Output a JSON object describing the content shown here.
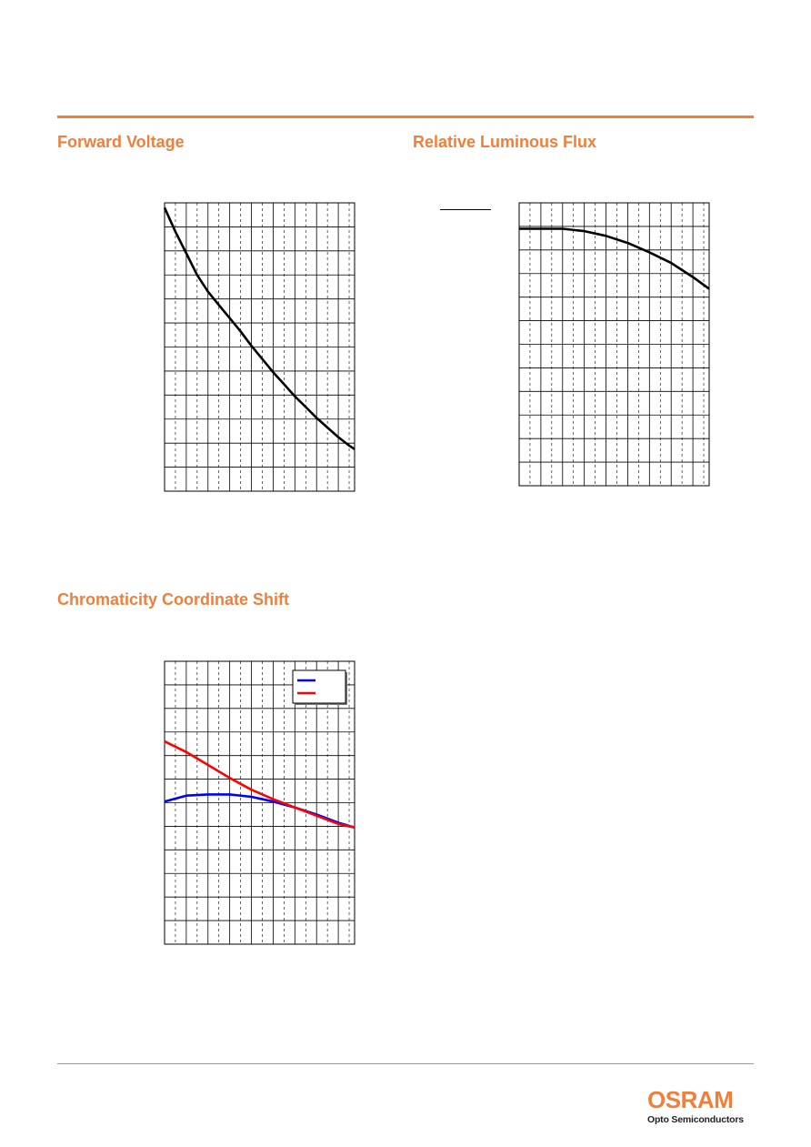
{
  "page": {
    "brand_color": "#f07f3c",
    "logo": {
      "wordmark": "OSRAM",
      "tagline": "Opto Semiconductors"
    }
  },
  "sections": {
    "forward_voltage": {
      "title": "Forward Voltage"
    },
    "relative_luminous_flux": {
      "title": "Relative Luminous Flux"
    },
    "chromaticity_shift": {
      "title": "Chromaticity Coordinate Shift"
    }
  },
  "chart_data": [
    {
      "id": "forward-voltage",
      "type": "line",
      "title": "Forward Voltage",
      "grid": true,
      "xlim": [
        0,
        17.5
      ],
      "ylim": [
        0,
        12
      ],
      "x_minor_dashed": true,
      "series": [
        {
          "color": "#000000",
          "x": [
            0,
            1,
            2,
            3,
            4,
            5,
            6,
            7,
            8,
            9,
            10,
            11,
            12,
            13,
            14,
            15,
            16,
            17,
            17.5
          ],
          "values": [
            11.8,
            10.8,
            9.9,
            9.0,
            8.3,
            7.75,
            7.2,
            6.65,
            6.05,
            5.5,
            4.95,
            4.45,
            3.95,
            3.5,
            3.05,
            2.65,
            2.25,
            1.9,
            1.75
          ]
        }
      ]
    },
    {
      "id": "relative-luminous-flux",
      "type": "line",
      "title": "Relative Luminous Flux",
      "grid": true,
      "xlim": [
        0,
        17.5
      ],
      "ylim": [
        0,
        12
      ],
      "x_minor_dashed": true,
      "series": [
        {
          "color": "#000000",
          "x": [
            0,
            2,
            4,
            6,
            8,
            10,
            12,
            14,
            16,
            17.5
          ],
          "values": [
            10.9,
            10.9,
            10.9,
            10.8,
            10.6,
            10.3,
            9.9,
            9.45,
            8.85,
            8.35
          ]
        }
      ]
    },
    {
      "id": "chromaticity-shift",
      "type": "line",
      "title": "Chromaticity Coordinate Shift",
      "grid": true,
      "xlim": [
        0,
        17.5
      ],
      "ylim": [
        0,
        12
      ],
      "x_minor_dashed": true,
      "legend": "top-right",
      "series": [
        {
          "color": "#0000ff",
          "x": [
            0,
            2,
            4,
            6,
            8,
            10,
            12,
            14,
            16,
            17.5
          ],
          "values": [
            6.05,
            6.3,
            6.35,
            6.35,
            6.25,
            6.05,
            5.8,
            5.5,
            5.15,
            4.95
          ]
        },
        {
          "color": "#ff0000",
          "x": [
            0,
            2,
            4,
            6,
            8,
            10,
            12,
            14,
            16,
            17.5
          ],
          "values": [
            8.6,
            8.15,
            7.6,
            7.05,
            6.55,
            6.15,
            5.8,
            5.45,
            5.1,
            4.95
          ]
        }
      ]
    }
  ]
}
